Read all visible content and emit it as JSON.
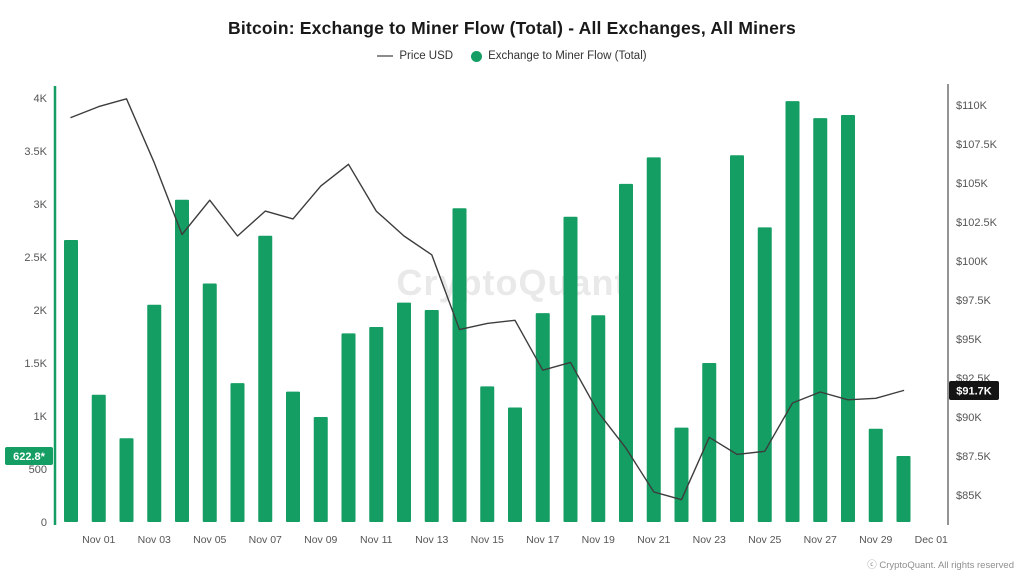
{
  "header": {
    "title": "Bitcoin: Exchange to Miner Flow (Total) - All Exchanges, All Miners"
  },
  "watermark": {
    "text": "CryptoQuant"
  },
  "footer": {
    "text": "ⓒ CryptoQuant. All rights reserved"
  },
  "chart_data": {
    "type": "bar",
    "title": "Bitcoin: Exchange to Miner Flow (Total) - All Exchanges, All Miners",
    "grid": false,
    "legend_position": "top",
    "categories": [
      "Oct 31",
      "Nov 01",
      "Nov 02",
      "Nov 03",
      "Nov 04",
      "Nov 05",
      "Nov 06",
      "Nov 07",
      "Nov 08",
      "Nov 09",
      "Nov 10",
      "Nov 11",
      "Nov 12",
      "Nov 13",
      "Nov 14",
      "Nov 15",
      "Nov 16",
      "Nov 17",
      "Nov 18",
      "Nov 19",
      "Nov 20",
      "Nov 21",
      "Nov 22",
      "Nov 23",
      "Nov 24",
      "Nov 25",
      "Nov 26",
      "Nov 27",
      "Nov 28",
      "Nov 29",
      "Nov 30"
    ],
    "series": [
      {
        "name": "Exchange to Miner Flow (Total)",
        "type": "bar",
        "axis": "left",
        "color": "#149e63",
        "values": [
          2660,
          1200,
          790,
          2050,
          3040,
          2250,
          1310,
          2700,
          1230,
          990,
          1780,
          1840,
          2070,
          2000,
          2960,
          1280,
          1080,
          1970,
          2880,
          1950,
          3190,
          3440,
          890,
          1500,
          3460,
          2780,
          3970,
          3810,
          3840,
          880,
          622.8
        ]
      },
      {
        "name": "Price USD",
        "type": "line",
        "axis": "right",
        "color": "#3d3d3d",
        "units": "thousand USD",
        "values": [
          109.2,
          109.9,
          110.4,
          106.3,
          101.7,
          103.9,
          101.6,
          103.2,
          102.7,
          104.8,
          106.2,
          103.2,
          101.6,
          100.4,
          95.6,
          96.0,
          96.2,
          93.0,
          93.5,
          90.3,
          88.0,
          85.2,
          84.7,
          88.7,
          87.6,
          87.8,
          90.9,
          91.6,
          91.1,
          91.2,
          91.7
        ]
      }
    ],
    "left_axis": {
      "min": 0,
      "max": 4000,
      "ticks": [
        {
          "value": 0,
          "label": "0"
        },
        {
          "value": 500,
          "label": "500"
        },
        {
          "value": 1000,
          "label": "1K"
        },
        {
          "value": 1500,
          "label": "1.5K"
        },
        {
          "value": 2000,
          "label": "2K"
        },
        {
          "value": 2500,
          "label": "2.5K"
        },
        {
          "value": 3000,
          "label": "3K"
        },
        {
          "value": 3500,
          "label": "3.5K"
        },
        {
          "value": 4000,
          "label": "4K"
        }
      ]
    },
    "right_axis": {
      "min": 85,
      "max": 110,
      "ticks": [
        {
          "value": 85,
          "label": "$85K"
        },
        {
          "value": 87.5,
          "label": "$87.5K"
        },
        {
          "value": 90,
          "label": "$90K"
        },
        {
          "value": 92.5,
          "label": "$92.5K"
        },
        {
          "value": 95,
          "label": "$95K"
        },
        {
          "value": 97.5,
          "label": "$97.5K"
        },
        {
          "value": 100,
          "label": "$100K"
        },
        {
          "value": 102.5,
          "label": "$102.5K"
        },
        {
          "value": 105,
          "label": "$105K"
        },
        {
          "value": 107.5,
          "label": "$107.5K"
        },
        {
          "value": 110,
          "label": "$110K"
        }
      ]
    },
    "x_ticks": [
      {
        "day": 1,
        "label": "Nov 01"
      },
      {
        "day": 3,
        "label": "Nov 03"
      },
      {
        "day": 5,
        "label": "Nov 05"
      },
      {
        "day": 7,
        "label": "Nov 07"
      },
      {
        "day": 9,
        "label": "Nov 09"
      },
      {
        "day": 11,
        "label": "Nov 11"
      },
      {
        "day": 13,
        "label": "Nov 13"
      },
      {
        "day": 15,
        "label": "Nov 15"
      },
      {
        "day": 17,
        "label": "Nov 17"
      },
      {
        "day": 19,
        "label": "Nov 19"
      },
      {
        "day": 21,
        "label": "Nov 21"
      },
      {
        "day": 23,
        "label": "Nov 23"
      },
      {
        "day": 25,
        "label": "Nov 25"
      },
      {
        "day": 27,
        "label": "Nov 27"
      },
      {
        "day": 29,
        "label": "Nov 29"
      },
      {
        "day": 31,
        "label": "Dec 01"
      }
    ],
    "annotations": {
      "left_badge": {
        "value": 622.8,
        "label": "622.8*",
        "color": "#149e63"
      },
      "right_badge": {
        "value": 91.7,
        "label": "$91.7K",
        "color": "#141414"
      }
    }
  }
}
